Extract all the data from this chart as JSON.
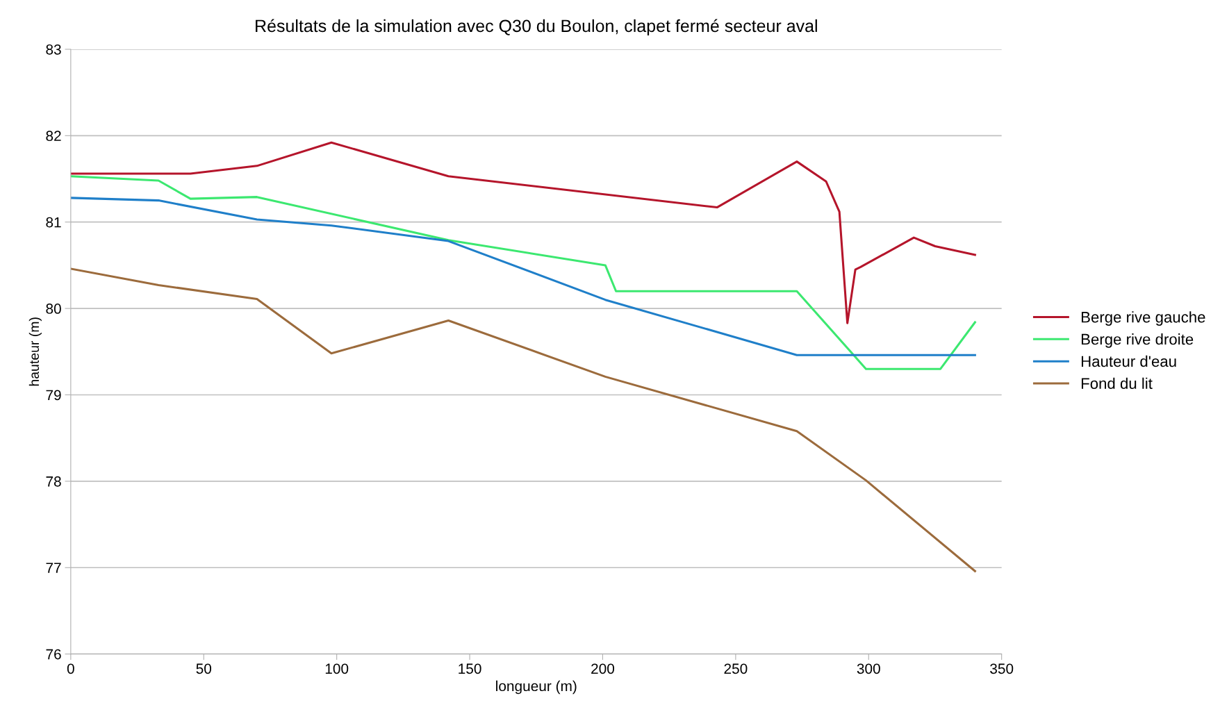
{
  "chart_data": {
    "type": "line",
    "title": "Résultats de la simulation avec Q30 du Boulon, clapet fermé secteur aval",
    "xlabel": "longueur (m)",
    "ylabel": "hauteur (m)",
    "xlim": [
      0,
      350
    ],
    "xticks": [
      0,
      50,
      100,
      150,
      200,
      250,
      300,
      350
    ],
    "ylim": [
      76,
      83
    ],
    "yticks": [
      76,
      77,
      78,
      79,
      80,
      81,
      82,
      83
    ],
    "grid": "y",
    "legend": "right",
    "marker": "none",
    "line_style": "solid",
    "series": [
      {
        "name": "Berge rive gauche",
        "color": "#b5152b",
        "x": [
          0,
          33,
          45,
          70,
          98,
          142,
          243,
          273,
          284,
          289,
          292,
          295,
          297,
          317,
          325,
          340
        ],
        "values": [
          81.56,
          81.56,
          81.56,
          81.65,
          81.92,
          81.53,
          81.17,
          81.7,
          81.47,
          81.12,
          79.83,
          80.45,
          80.48,
          80.82,
          80.72,
          80.62
        ]
      },
      {
        "name": "Berge rive droite",
        "color": "#3ce870",
        "x": [
          0,
          33,
          45,
          70,
          142,
          201,
          205,
          273,
          299,
          327,
          340
        ],
        "values": [
          81.53,
          81.48,
          81.27,
          81.29,
          80.79,
          80.5,
          80.2,
          80.2,
          79.3,
          79.3,
          79.84
        ]
      },
      {
        "name": "Hauteur d'eau",
        "color": "#1f7fc9",
        "x": [
          0,
          33,
          70,
          98,
          142,
          201,
          273,
          340
        ],
        "values": [
          81.28,
          81.25,
          81.03,
          80.96,
          80.78,
          80.1,
          79.46,
          79.46
        ]
      },
      {
        "name": "Fond du lit",
        "color": "#9c6b3c",
        "x": [
          0,
          33,
          70,
          98,
          142,
          201,
          273,
          299,
          340
        ],
        "values": [
          80.46,
          80.27,
          80.11,
          79.48,
          79.86,
          79.21,
          78.58,
          78.01,
          76.96
        ]
      }
    ]
  }
}
